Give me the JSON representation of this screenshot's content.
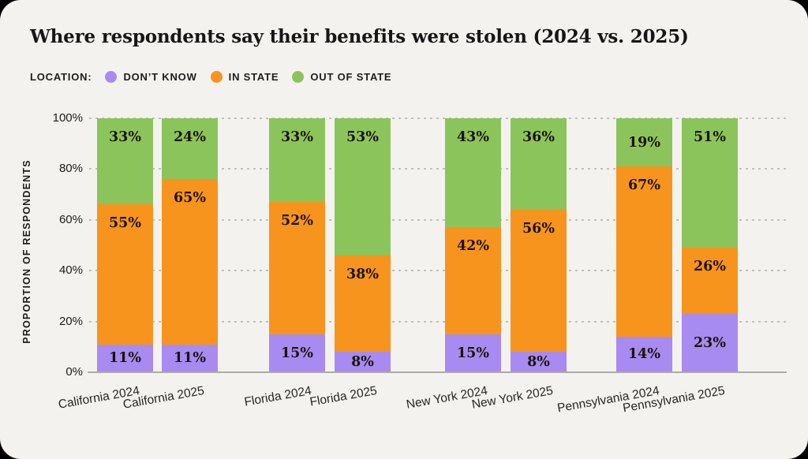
{
  "title": "Where respondents say their benefits were stolen (2024 vs. 2025)",
  "legend": {
    "title": "LOCATION:",
    "items": [
      {
        "label": "DON’T KNOW",
        "color": "#A78BF0"
      },
      {
        "label": "IN STATE",
        "color": "#F7941D"
      },
      {
        "label": "OUT OF STATE",
        "color": "#8CC45C"
      }
    ]
  },
  "chart_data": {
    "type": "bar",
    "stacked": true,
    "categories": [
      "California 2024",
      "California 2025",
      "Florida 2024",
      "Florida 2025",
      "New York 2024",
      "New York 2025",
      "Pennsylvania 2024",
      "Pennsylvania 2025"
    ],
    "series": [
      {
        "name": "DON’T KNOW",
        "color": "#A78BF0",
        "values": [
          11,
          11,
          15,
          8,
          15,
          8,
          14,
          23
        ]
      },
      {
        "name": "IN STATE",
        "color": "#F7941D",
        "values": [
          55,
          65,
          52,
          38,
          42,
          56,
          67,
          26
        ]
      },
      {
        "name": "OUT OF STATE",
        "color": "#8CC45C",
        "values": [
          33,
          24,
          33,
          53,
          43,
          36,
          19,
          51
        ]
      }
    ],
    "ylabel": "PROPORTION OF RESPONDENTS",
    "yticks": [
      "0%",
      "20%",
      "40%",
      "60%",
      "80%",
      "100%"
    ],
    "ylim": [
      0,
      100
    ],
    "grid": "dashed-horizontal",
    "legend_position": "top",
    "value_label_suffix": "%",
    "background": "#F4F2EE"
  }
}
